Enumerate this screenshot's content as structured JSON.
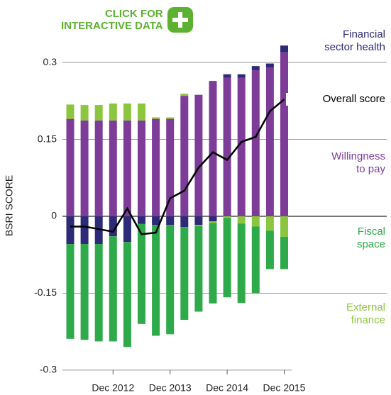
{
  "chart_data": {
    "type": "bar",
    "stacked": true,
    "button_text": [
      "CLICK FOR",
      "INTERACTIVE DATA"
    ],
    "ylabel": "BSRI SCORE",
    "categories": [
      null,
      null,
      null,
      "Dec 2012",
      null,
      null,
      null,
      "Dec 2013",
      null,
      null,
      null,
      "Dec 2014",
      null,
      null,
      null,
      "Dec 2015"
    ],
    "ylim": [
      -0.3,
      0.34
    ],
    "yticks": [
      -0.3,
      -0.15,
      0,
      0.15,
      0.3
    ],
    "grid": true,
    "series": [
      {
        "name": "Financial sector health",
        "color": "#2d2a77",
        "values": [
          -0.054,
          -0.054,
          -0.054,
          -0.039,
          -0.05,
          -0.015,
          -0.017,
          -0.017,
          -0.021,
          -0.017,
          -0.01,
          0.007,
          0.007,
          0.008,
          0.008,
          0.013
        ]
      },
      {
        "name": "Willingness to pay",
        "color": "#7d3c98",
        "values": [
          0.19,
          0.187,
          0.187,
          0.187,
          0.187,
          0.187,
          0.19,
          0.19,
          0.235,
          0.237,
          0.264,
          0.27,
          0.27,
          0.285,
          0.29,
          0.32
        ]
      },
      {
        "name": "Fiscal space",
        "color": "#2eaa4a",
        "values": [
          -0.185,
          -0.187,
          -0.19,
          -0.205,
          -0.205,
          -0.195,
          -0.216,
          -0.213,
          -0.181,
          -0.167,
          -0.157,
          -0.155,
          -0.155,
          -0.13,
          -0.075,
          -0.063
        ]
      },
      {
        "name": "External finance",
        "color": "#8cc63f",
        "values": [
          0.028,
          0.03,
          0.03,
          0.033,
          0.033,
          0.033,
          0.003,
          0.003,
          0.004,
          -0.002,
          -0.003,
          -0.003,
          -0.014,
          -0.02,
          -0.028,
          -0.04
        ]
      },
      {
        "name": "Overall score",
        "color": "#000000",
        "type": "line",
        "values": [
          -0.02,
          -0.02,
          -0.025,
          -0.03,
          0.015,
          -0.035,
          -0.032,
          0.035,
          0.05,
          0.095,
          0.125,
          0.11,
          0.145,
          0.155,
          0.205,
          0.228
        ]
      }
    ]
  }
}
